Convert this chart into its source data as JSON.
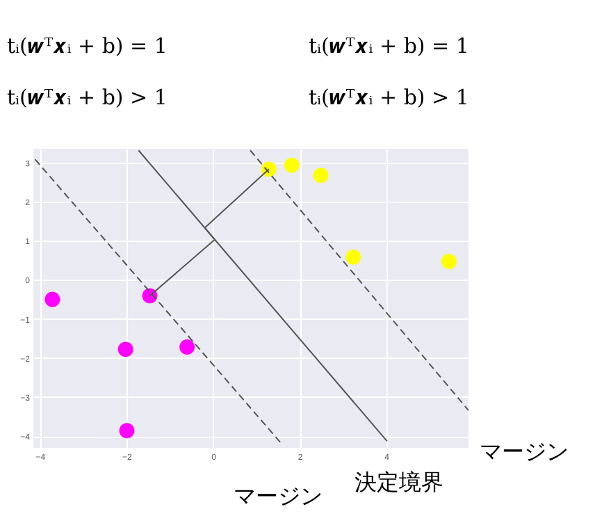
{
  "chart_data": {
    "type": "scatter",
    "annotations": [
      "tᵢ(𝒘ᵀ𝒙ᵢ + b) = 1",
      "tᵢ(𝒘ᵀ𝒙ᵢ + b) = 1",
      "tᵢ(𝒘ᵀ𝒙ᵢ + b) > 1",
      "tᵢ(𝒘ᵀ𝒙ᵢ + b) > 1",
      "マージン",
      "マージン",
      "決定境界"
    ],
    "xlim": [
      -4.15,
      5.9
    ],
    "ylim": [
      -4.3,
      3.35
    ],
    "xticks": [
      -4,
      -2,
      0,
      2,
      4
    ],
    "yticks": [
      -4,
      -3,
      -2,
      -1,
      0,
      1,
      2,
      3
    ],
    "grid": true,
    "series": [
      {
        "type": "scatter",
        "marker": "circle",
        "color": "#ff00ff",
        "x": [
          -3.71,
          -1.46,
          -2.02,
          -0.6,
          -1.99
        ],
        "values": [
          -0.5,
          -0.41,
          -1.78,
          -1.72,
          -3.86
        ]
      },
      {
        "type": "scatter",
        "marker": "circle",
        "color": "#ffff00",
        "x": [
          1.29,
          1.82,
          2.49,
          3.24,
          5.45
        ],
        "values": [
          2.83,
          2.93,
          2.67,
          0.58,
          0.47
        ]
      },
      {
        "type": "line",
        "color": "#555555",
        "line_style": "solid",
        "x": [
          -1.72,
          4.02
        ],
        "values": [
          3.31,
          -4.13
        ]
      },
      {
        "type": "line",
        "color": "#555555",
        "line_style": "dashed",
        "x": [
          -4.11,
          1.58
        ],
        "values": [
          3.08,
          -4.19
        ]
      },
      {
        "type": "line",
        "color": "#555555",
        "line_style": "dashed",
        "x": [
          0.86,
          5.9
        ],
        "values": [
          3.31,
          -3.34
        ]
      },
      {
        "type": "line",
        "color": "#555555",
        "line_style": "solid",
        "x": [
          -1.46,
          0.04,
          -0.19,
          1.29
        ],
        "values": [
          -0.41,
          1.03,
          1.33,
          2.83
        ]
      }
    ]
  }
}
